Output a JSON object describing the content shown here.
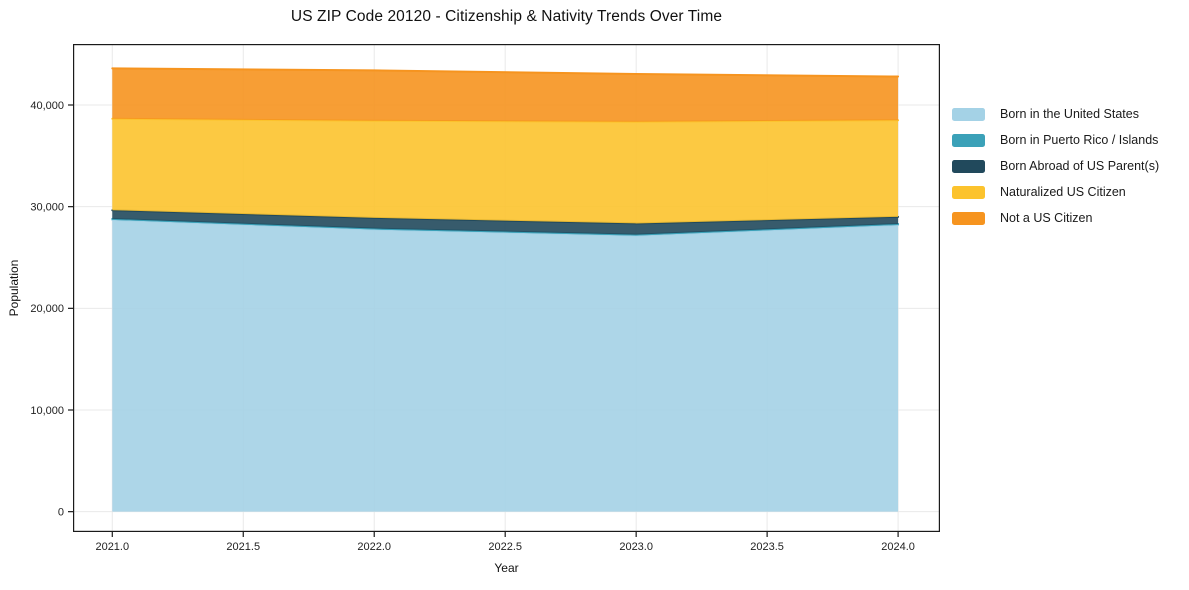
{
  "chart_data": {
    "type": "area",
    "stacked": true,
    "title": "US ZIP Code 20120 - Citizenship & Nativity Trends Over Time",
    "xlabel": "Year",
    "ylabel": "Population",
    "x": [
      2021,
      2022,
      2023,
      2024
    ],
    "series": [
      {
        "name": "Born in the United States",
        "color": "#a4d2e6",
        "values": [
          28700,
          27750,
          27150,
          28200
        ]
      },
      {
        "name": "Born in Puerto Rico / Islands",
        "color": "#3ba1b8",
        "values": [
          100,
          100,
          100,
          100
        ]
      },
      {
        "name": "Born Abroad of US Parent(s)",
        "color": "#21495c",
        "values": [
          850,
          1050,
          1100,
          700
        ]
      },
      {
        "name": "Naturalized US Citizen",
        "color": "#fcc32d",
        "values": [
          9000,
          9550,
          10000,
          9500
        ]
      },
      {
        "name": "Not a US Citizen",
        "color": "#f6941f",
        "values": [
          4950,
          4950,
          4700,
          4300
        ]
      }
    ],
    "xlim": [
      2020.85,
      2024.16
    ],
    "ylim": [
      -2000,
      46000
    ],
    "xticks": {
      "values": [
        2021.0,
        2021.5,
        2022.0,
        2022.5,
        2023.0,
        2023.5,
        2024.0
      ],
      "labels": [
        "2021.0",
        "2021.5",
        "2022.0",
        "2022.5",
        "2023.0",
        "2023.5",
        "2024.0"
      ]
    },
    "yticks": {
      "values": [
        0,
        10000,
        20000,
        30000,
        40000
      ],
      "labels": [
        "0",
        "10,000",
        "20,000",
        "30,000",
        "40,000"
      ]
    },
    "grid": true,
    "legend_position": "right",
    "style": {
      "fill_opacity": 0.9,
      "grid_color": "#e9e9e9",
      "frame_color": "#1a1a1a",
      "tick_text_color": "#222222"
    }
  }
}
